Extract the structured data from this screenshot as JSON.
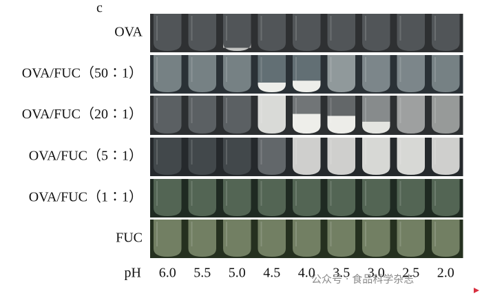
{
  "panel_label": "c",
  "rows": [
    "OVA",
    "OVA/FUC（50∶1）",
    "OVA/FUC（20∶1）",
    "OVA/FUC（5∶1）",
    "OVA/FUC（1∶1）",
    "FUC"
  ],
  "ph_label": "pH",
  "ph_values": [
    "6.0",
    "5.5",
    "5.0",
    "4.5",
    "4.0",
    "3.5",
    "3.0",
    "2.5",
    "2.0"
  ],
  "watermark": "公众号 · 食品科学杂志"
}
